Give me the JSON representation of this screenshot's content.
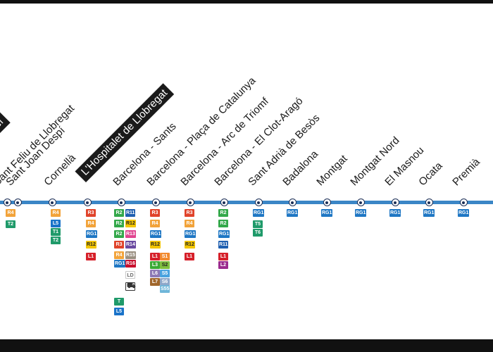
{
  "line_color": "#3b86c6",
  "stations": [
    {
      "id": "rei",
      "label": "Rei",
      "boxed": true,
      "lines": []
    },
    {
      "id": "sant-feliu",
      "label": "Sant Feliu de Llobregat",
      "boxed": false,
      "lines": [
        "R4",
        "T2"
      ]
    },
    {
      "id": "sant-joan-despi",
      "label": "Sant Joan Despí",
      "boxed": false,
      "lines": []
    },
    {
      "id": "cornella",
      "label": "Cornellà",
      "boxed": false,
      "lines": [
        "R4",
        "L5",
        "T1",
        "T2"
      ]
    },
    {
      "id": "hospitalet",
      "label": "L'Hospitalet de Llobregat",
      "boxed": true,
      "lines": [
        "R3",
        "R4",
        "RG1",
        "R12",
        "L1"
      ]
    },
    {
      "id": "sants",
      "label": "Barcelona - Sants",
      "boxed": false,
      "lines": [
        "R2",
        "R2",
        "R2",
        "R3",
        "R4",
        "RG1",
        "R11",
        "R12",
        "R13",
        "R14",
        "R15",
        "R16",
        "LD",
        "AVE",
        "T",
        "L5"
      ]
    },
    {
      "id": "placa-catalunya",
      "label": "Barcelona - Plaça de Catalunya",
      "boxed": false,
      "lines": [
        "R3",
        "R4",
        "RG1",
        "R12",
        "L1",
        "L3",
        "L6",
        "L7",
        "S1",
        "S2",
        "S5",
        "S6",
        "S55"
      ]
    },
    {
      "id": "arc-de-triomf",
      "label": "Barcelona - Arc de Triomf",
      "boxed": false,
      "lines": [
        "R3",
        "R4",
        "RG1",
        "R12",
        "L1"
      ]
    },
    {
      "id": "clot-arago",
      "label": "Barcelona - El Clot-Aragó",
      "boxed": false,
      "lines": [
        "R2",
        "R2",
        "RG1",
        "R11",
        "L1",
        "L2"
      ]
    },
    {
      "id": "sant-adria",
      "label": "Sant Adrià de Besòs",
      "boxed": false,
      "lines": [
        "RG1",
        "T5",
        "T6"
      ]
    },
    {
      "id": "badalona",
      "label": "Badalona",
      "boxed": false,
      "lines": [
        "RG1"
      ]
    },
    {
      "id": "montgat",
      "label": "Montgat",
      "boxed": false,
      "lines": [
        "RG1"
      ]
    },
    {
      "id": "montgat-nord",
      "label": "Montgat Nord",
      "boxed": false,
      "lines": [
        "RG1"
      ]
    },
    {
      "id": "el-masnou",
      "label": "El Masnou",
      "boxed": false,
      "lines": [
        "RG1"
      ]
    },
    {
      "id": "ocata",
      "label": "Ocata",
      "boxed": false,
      "lines": [
        "RG1"
      ]
    },
    {
      "id": "premia",
      "label": "Premià",
      "boxed": false,
      "lines": [
        "RG1"
      ]
    }
  ],
  "line_colors": {
    "R2": "#33a84a",
    "R3": "#e0432a",
    "R4": "#f2a33a",
    "RG1": "#1f77c4",
    "R11": "#1f5fb0",
    "R12": "#f2c500",
    "R13": "#e0448f",
    "R14": "#6a4aa0",
    "R15": "#9a8f80",
    "R16": "#c8102e",
    "LD": "#ffffff",
    "AVE": "#ffffff",
    "L1": "#d6202a",
    "L2": "#9b2b8e",
    "L3": "#3aaa35",
    "L5": "#1a73c9",
    "L6": "#8d7ab5",
    "L7": "#a0662b",
    "S1": "#f28a2e",
    "S2": "#7fbf3f",
    "S5": "#4aa3df",
    "S6": "#8ea7c9",
    "S55": "#6fb6d9",
    "T": "#1f9a6a",
    "T1": "#1f9a6a",
    "T2": "#1f9a6a",
    "T5": "#1f9a6a",
    "T6": "#1f9a6a"
  }
}
